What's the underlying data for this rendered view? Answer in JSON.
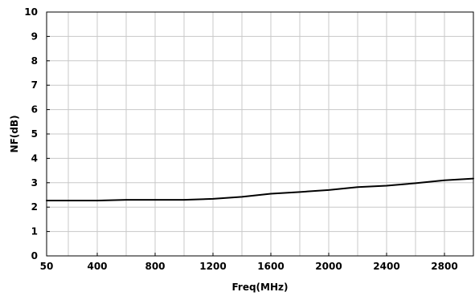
{
  "chart_data": {
    "type": "line",
    "title": "",
    "xlabel": "Freq(MHz)",
    "ylabel": "NF(dB)",
    "xlim": [
      50,
      3000
    ],
    "ylim": [
      0,
      10
    ],
    "grid": true,
    "x_ticks": [
      {
        "value": 50,
        "label": "50"
      },
      {
        "value": 400,
        "label": "400"
      },
      {
        "value": 800,
        "label": "800"
      },
      {
        "value": 1200,
        "label": "1200"
      },
      {
        "value": 1600,
        "label": "1600"
      },
      {
        "value": 2000,
        "label": "2000"
      },
      {
        "value": 2400,
        "label": "2400"
      },
      {
        "value": 2800,
        "label": "2800"
      }
    ],
    "x_grid": [
      50,
      200,
      400,
      600,
      800,
      1000,
      1200,
      1400,
      1600,
      1800,
      2000,
      2200,
      2400,
      2600,
      2800,
      3000
    ],
    "y_ticks": [
      {
        "value": 0,
        "label": "0"
      },
      {
        "value": 1,
        "label": "1"
      },
      {
        "value": 2,
        "label": "2"
      },
      {
        "value": 3,
        "label": "3"
      },
      {
        "value": 4,
        "label": "4"
      },
      {
        "value": 5,
        "label": "5"
      },
      {
        "value": 6,
        "label": "6"
      },
      {
        "value": 7,
        "label": "7"
      },
      {
        "value": 8,
        "label": "8"
      },
      {
        "value": 9,
        "label": "9"
      },
      {
        "value": 10,
        "label": "10"
      }
    ],
    "series": [
      {
        "color": "#000000",
        "x": [
          50,
          200,
          400,
          600,
          800,
          1000,
          1200,
          1400,
          1600,
          1800,
          2000,
          2200,
          2400,
          2600,
          2800,
          3000
        ],
        "y": [
          2.27,
          2.27,
          2.27,
          2.3,
          2.3,
          2.3,
          2.34,
          2.42,
          2.55,
          2.62,
          2.7,
          2.82,
          2.88,
          2.98,
          3.1,
          3.17
        ]
      }
    ]
  }
}
